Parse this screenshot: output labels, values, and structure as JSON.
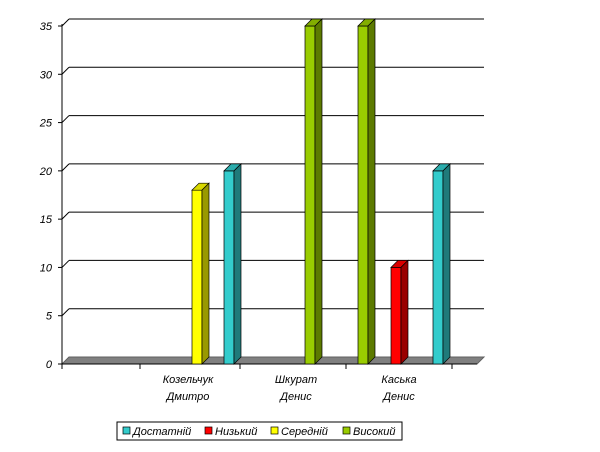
{
  "chart_data": {
    "type": "bar",
    "style": "3d-clustered-column",
    "categories": [
      [
        "",
        ""
      ],
      [
        "Козельчук",
        "Дмитро"
      ],
      [
        "Шкурат",
        "Денис"
      ],
      [
        "Каська",
        "Денис"
      ]
    ],
    "series": [
      {
        "name": "Достатній",
        "color": "#33CCCC",
        "values": [
          null,
          20,
          null,
          20
        ]
      },
      {
        "name": "Низький",
        "color": "#FF0000",
        "values": [
          null,
          null,
          null,
          10
        ]
      },
      {
        "name": "Середній",
        "color": "#FFFF00",
        "values": [
          null,
          18,
          null,
          null
        ]
      },
      {
        "name": "Високий",
        "color": "#99CC00",
        "values": [
          null,
          null,
          35,
          35
        ]
      }
    ],
    "bar_order": [
      {
        "series": 2,
        "category": 1
      },
      {
        "series": 0,
        "category": 1
      },
      {
        "series": 3,
        "category": 2
      },
      {
        "series": 3,
        "category": 3
      },
      {
        "series": 1,
        "category": 3
      },
      {
        "series": 0,
        "category": 3
      }
    ],
    "ylim": [
      0,
      35
    ],
    "yticks": [
      0,
      5,
      10,
      15,
      20,
      25,
      30,
      35
    ],
    "gridlines": true,
    "legend_position": "bottom",
    "title": "",
    "xlabel": "",
    "ylabel": ""
  }
}
